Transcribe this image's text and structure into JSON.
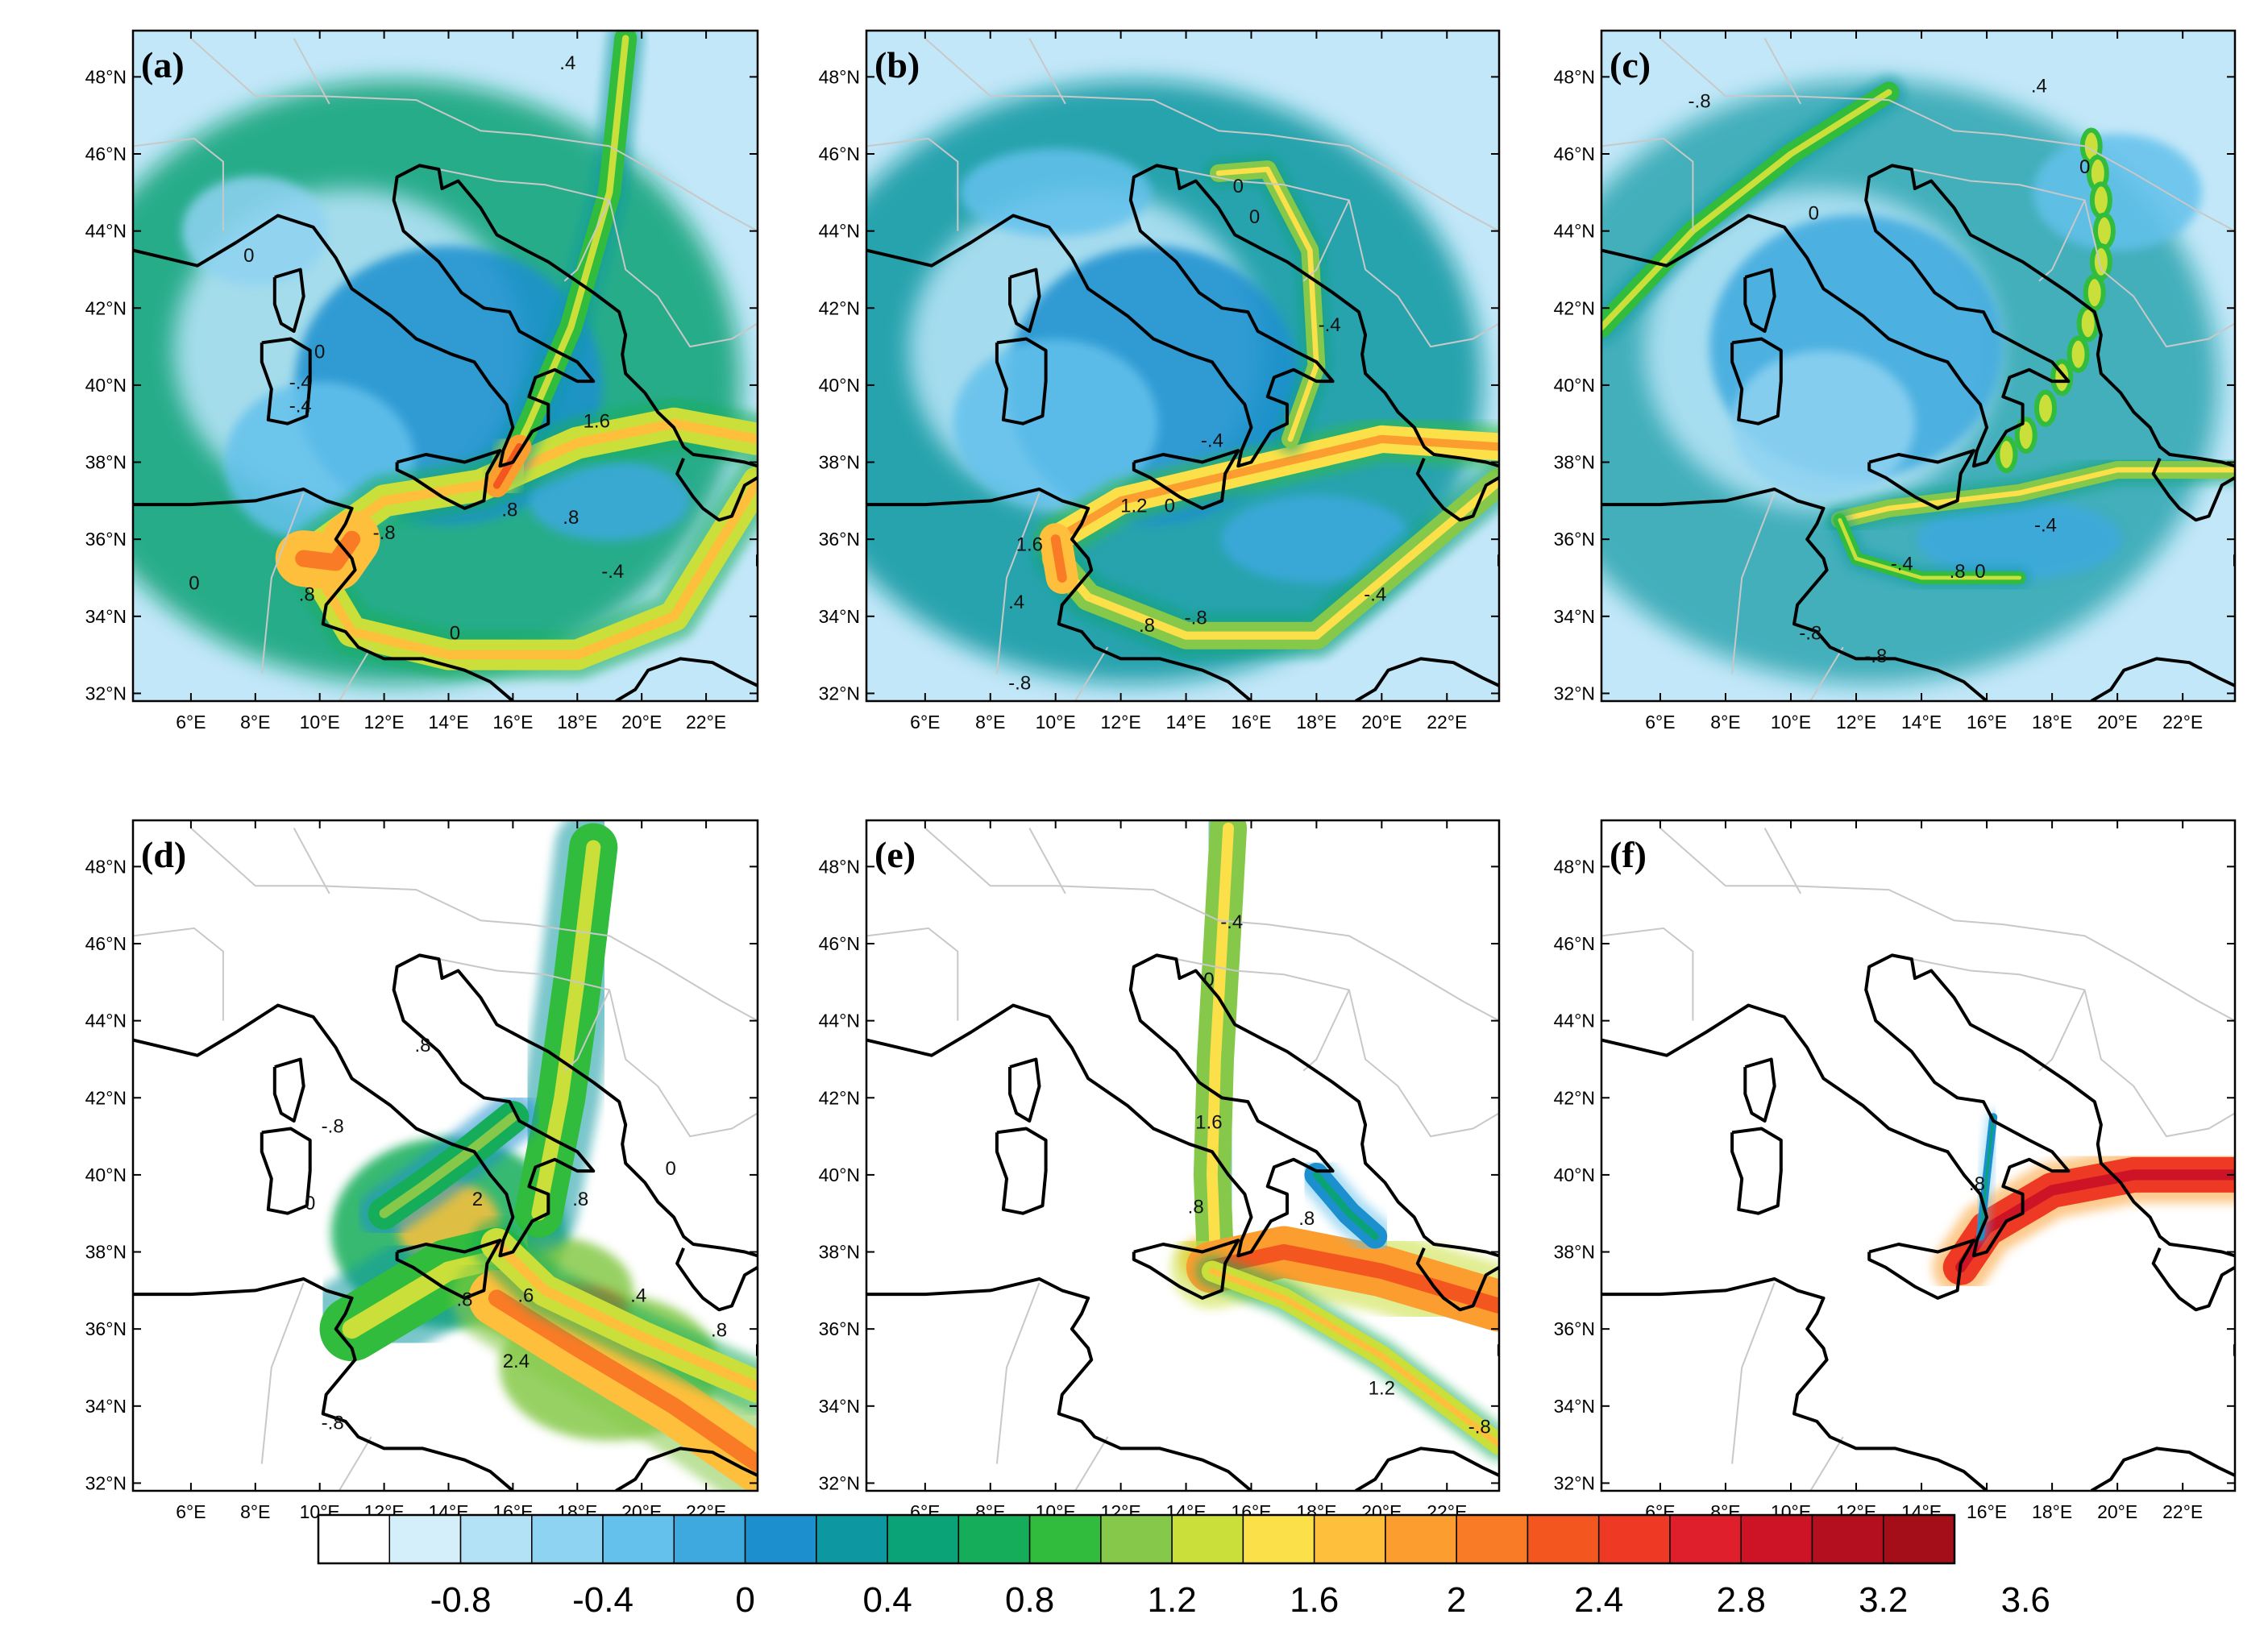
{
  "figure": {
    "panels": [
      {
        "id": "a",
        "label": "(a)"
      },
      {
        "id": "b",
        "label": "(b)"
      },
      {
        "id": "c",
        "label": "(c)"
      },
      {
        "id": "d",
        "label": "(d)"
      },
      {
        "id": "e",
        "label": "(e)"
      },
      {
        "id": "f",
        "label": "(f)"
      }
    ],
    "lat_ticks": [
      "32°N",
      "34°N",
      "36°N",
      "38°N",
      "40°N",
      "42°N",
      "44°N",
      "46°N",
      "48°N"
    ],
    "lon_ticks": [
      "6°E",
      "8°E",
      "10°E",
      "12°E",
      "14°E",
      "16°E",
      "18°E",
      "20°E",
      "22°E"
    ],
    "lat_range": [
      31.8,
      49.2
    ],
    "lon_range": [
      4.2,
      23.6
    ],
    "colorbar": {
      "levels": [
        -0.8,
        -0.4,
        0,
        0.4,
        0.8,
        1.2,
        1.6,
        2,
        2.4,
        2.8,
        3.2,
        3.6
      ],
      "labels": [
        "-0.8",
        "-0.4",
        "0",
        "0.4",
        "0.8",
        "1.2",
        "1.6",
        "2",
        "2.4",
        "2.8",
        "3.2",
        "3.6"
      ],
      "colors": [
        "#ffffff",
        "#d4eefa",
        "#b3e2f6",
        "#8fd3f2",
        "#63c1ec",
        "#3ea9de",
        "#1c90cf",
        "#0d98a1",
        "#0aa277",
        "#15ad5a",
        "#31bc3d",
        "#86c94a",
        "#cadf3a",
        "#fbe04a",
        "#fdbf3c",
        "#fb9e2f",
        "#f97b26",
        "#f4561f",
        "#ee3a24",
        "#e01f2c",
        "#cc1426",
        "#b40f1f",
        "#a30e19"
      ]
    },
    "contour_labels": {
      "a": [
        "-.4",
        "0",
        "-.4",
        "0",
        "1.6",
        ".8",
        ".8",
        "-.8",
        "0",
        ".8",
        "-.4",
        "0",
        ".4"
      ],
      "b": [
        "0",
        "0",
        "-.4",
        "1.2",
        ".4",
        "1.6",
        ".8",
        "0",
        "-.4",
        "-.8",
        "-.8",
        "-.4"
      ],
      "c": [
        "-.8",
        "0",
        ".4",
        "0",
        "-.4",
        "-.8",
        "-.4",
        ".8",
        "0",
        "-.8"
      ],
      "d": [
        "-.8",
        "0",
        ".8",
        ".8",
        "0",
        "2",
        ".8",
        ".6",
        ".4",
        "2.4",
        ".8",
        "-.8"
      ],
      "e": [
        "-.4",
        "0",
        "1.6",
        ".8",
        ".8",
        "1.2",
        "-.8"
      ],
      "f": [
        ".8"
      ]
    }
  }
}
